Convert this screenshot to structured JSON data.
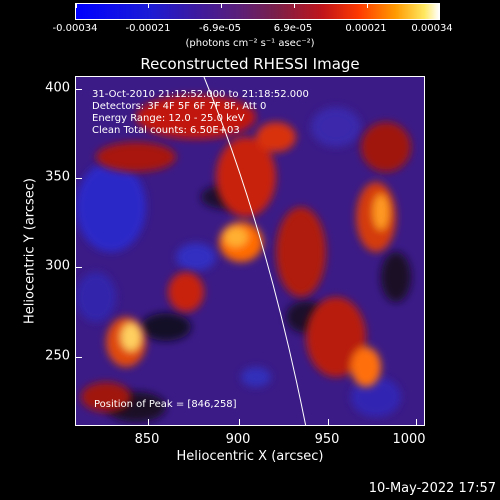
{
  "colorbar": {
    "ticks": [
      "-0.00034",
      "-0.00021",
      "-6.9e-05",
      "6.9e-05",
      "0.00021",
      "0.00034"
    ],
    "units": "(photons cm⁻² s⁻¹ asec⁻²)"
  },
  "title": "Reconstructed RHESSI Image",
  "info": {
    "time": "31-Oct-2010 21:12:52.000 to 21:18:52.000",
    "detectors": "Detectors: 3F 4F 5F 6F 7F 8F, Att 0",
    "energy": "Energy Range: 12.0 - 25.0 keV",
    "clean": "Clean    Total counts: 6.50E+03",
    "peak": "Position of Peak = [846,258]"
  },
  "axes": {
    "xlabel": "Heliocentric X (arcsec)",
    "ylabel": "Heliocentric Y (arcsec)",
    "xticks": [
      "850",
      "900",
      "950",
      "1000"
    ],
    "yticks": [
      "400",
      "350",
      "300",
      "250"
    ]
  },
  "footer": {
    "date": "10-May-2022 17:57"
  },
  "colors": {
    "background": "#000000",
    "limb": "#ffffff"
  }
}
